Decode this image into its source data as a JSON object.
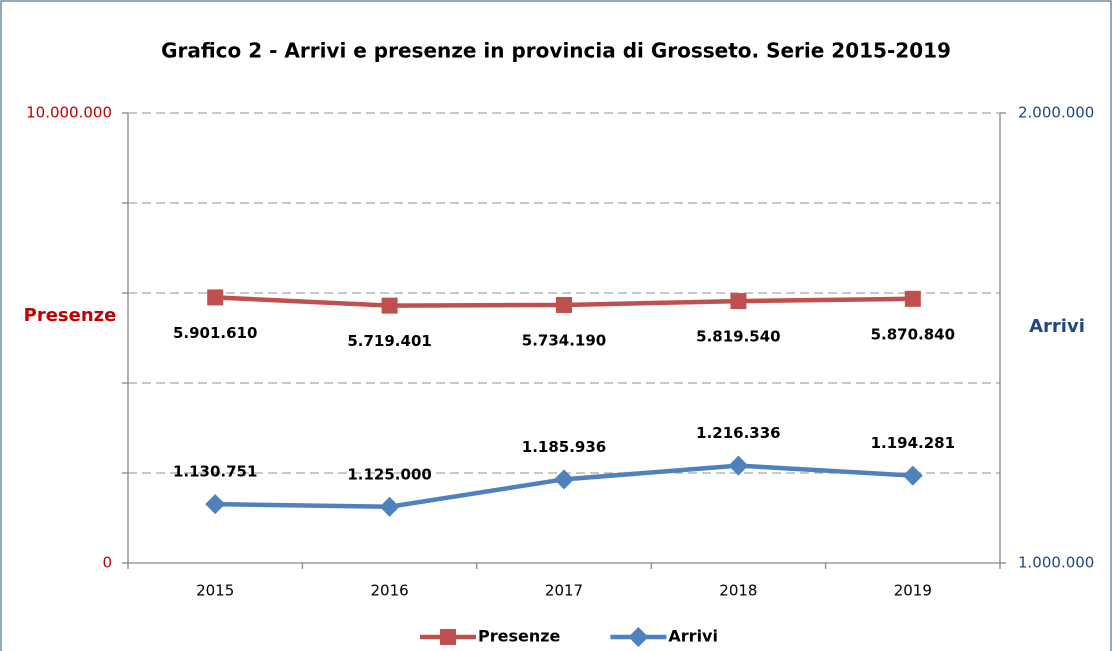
{
  "chart_data": {
    "type": "line",
    "title": "Grafico 2 - Arrivi e presenze in provincia di Grosseto. Serie 2015-2019",
    "ylabel": "Presenze",
    "y2label": "Arrivi",
    "categories": [
      "2015",
      "2016",
      "2017",
      "2018",
      "2019"
    ],
    "ylim": [
      0,
      10000000
    ],
    "yticks": [
      0,
      {
        "value": 2000000,
        "label": null
      },
      {
        "value": 4000000,
        "label": null
      },
      {
        "value": 6000000,
        "label": null
      },
      {
        "value": 8000000,
        "label": null
      },
      {
        "value": 10000000,
        "label": "10.000.000"
      }
    ],
    "y2lim": [
      1000000,
      2000000
    ],
    "y2ticks": [
      {
        "value": 1000000,
        "label": "1.000.000"
      },
      {
        "value": 2000000,
        "label": "2.000.000"
      }
    ],
    "grid": true,
    "legend": "bottom",
    "series": [
      {
        "name": "Presenze",
        "color": "#c0504d",
        "marker": "square",
        "values": [
          5901610,
          5719401,
          5734190,
          5819540,
          5870840
        ],
        "value_labels": [
          "5.901.610",
          "5.719.401",
          "5.734.190",
          "5.819.540",
          "5.870.840"
        ]
      },
      {
        "name": "Arrivi",
        "color": "#4f81bd",
        "marker": "diamond",
        "axis": "y2",
        "values": [
          1130751,
          1125000,
          1185936,
          1216336,
          1194281
        ],
        "value_labels": [
          "1.130.751",
          "1.125.000",
          "1.185.936",
          "1.216.336",
          "1.194.281"
        ]
      }
    ]
  }
}
